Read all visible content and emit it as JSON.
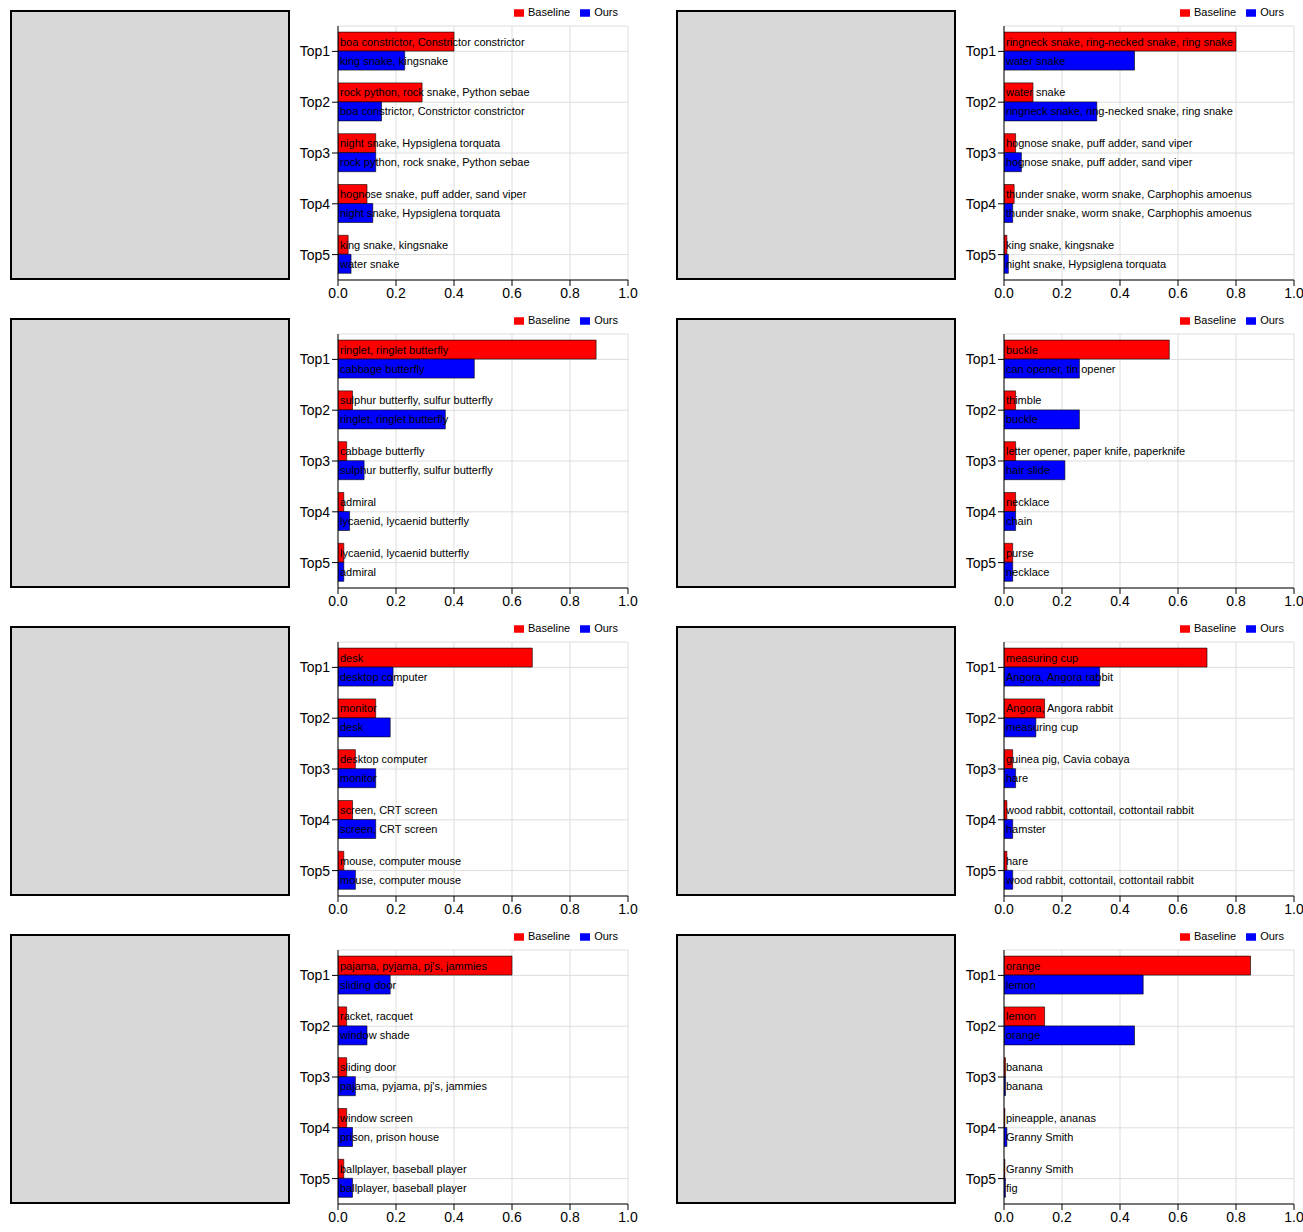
{
  "chart_data": [
    {
      "type": "bar",
      "orientation": "horizontal",
      "grid": true,
      "legend": "top",
      "categories": [
        "Top1",
        "Top2",
        "Top3",
        "Top4",
        "Top5"
      ],
      "xlim": [
        0,
        1
      ],
      "xticks": [
        {
          "value": 0,
          "label": "0.0"
        },
        0.2,
        0.4,
        0.6,
        0.8,
        {
          "value": 1,
          "label": "1.0"
        }
      ],
      "series": [
        {
          "name": "Baseline",
          "color": "#ff0000",
          "values": [
            0.4,
            0.29,
            0.13,
            0.1,
            0.035
          ],
          "labels": [
            "boa constrictor, Constrictor constrictor",
            "rock python, rock snake, Python sebae",
            "night snake, Hypsiglena torquata",
            "hognose snake, puff adder, sand viper",
            "king snake, kingsnake"
          ]
        },
        {
          "name": "Ours",
          "color": "#0000ff",
          "values": [
            0.23,
            0.15,
            0.13,
            0.12,
            0.045
          ],
          "labels": [
            "king snake, kingsnake",
            "boa constrictor, Constrictor constrictor",
            "rock python, rock snake, Python sebae",
            "night snake, Hypsiglena torquata",
            "water snake"
          ]
        }
      ]
    },
    {
      "type": "bar",
      "orientation": "horizontal",
      "grid": true,
      "legend": "top",
      "categories": [
        "Top1",
        "Top2",
        "Top3",
        "Top4",
        "Top5"
      ],
      "xlim": [
        0,
        1
      ],
      "xticks": [
        {
          "value": 0,
          "label": "0.0"
        },
        0.2,
        0.4,
        0.6,
        0.8,
        {
          "value": 1,
          "label": "1.0"
        }
      ],
      "series": [
        {
          "name": "Baseline",
          "color": "#ff0000",
          "values": [
            0.8,
            0.1,
            0.04,
            0.035,
            0.01
          ],
          "labels": [
            "ringneck snake, ring-necked snake, ring snake",
            "water snake",
            "hognose snake, puff adder, sand viper",
            "thunder snake, worm snake, Carphophis amoenus",
            "king snake, kingsnake"
          ]
        },
        {
          "name": "Ours",
          "color": "#0000ff",
          "values": [
            0.45,
            0.32,
            0.06,
            0.03,
            0.015
          ],
          "labels": [
            "water snake",
            "ringneck snake, ring-necked snake, ring snake",
            "hognose snake, puff adder, sand viper",
            "thunder snake, worm snake, Carphophis amoenus",
            "night snake, Hypsiglena torquata"
          ]
        }
      ]
    },
    {
      "type": "bar",
      "orientation": "horizontal",
      "grid": true,
      "legend": "top",
      "categories": [
        "Top1",
        "Top2",
        "Top3",
        "Top4",
        "Top5"
      ],
      "xlim": [
        0,
        1
      ],
      "xticks": [
        {
          "value": 0,
          "label": "0.0"
        },
        0.2,
        0.4,
        0.6,
        0.8,
        {
          "value": 1,
          "label": "1.0"
        }
      ],
      "series": [
        {
          "name": "Baseline",
          "color": "#ff0000",
          "values": [
            0.89,
            0.05,
            0.03,
            0.02,
            0.02
          ],
          "labels": [
            "ringlet, ringlet butterfly",
            "sulphur butterfly, sulfur butterfly",
            "cabbage butterfly",
            "admiral",
            "lycaenid, lycaenid butterfly"
          ]
        },
        {
          "name": "Ours",
          "color": "#0000ff",
          "values": [
            0.47,
            0.37,
            0.09,
            0.04,
            0.02
          ],
          "labels": [
            "cabbage butterfly",
            "ringlet, ringlet butterfly",
            "sulphur butterfly, sulfur butterfly",
            "lycaenid, lycaenid butterfly",
            "admiral"
          ]
        }
      ]
    },
    {
      "type": "bar",
      "orientation": "horizontal",
      "grid": true,
      "legend": "top",
      "categories": [
        "Top1",
        "Top2",
        "Top3",
        "Top4",
        "Top5"
      ],
      "xlim": [
        0,
        1
      ],
      "xticks": [
        {
          "value": 0,
          "label": "0.0"
        },
        0.2,
        0.4,
        0.6,
        0.8,
        {
          "value": 1,
          "label": "1.0"
        }
      ],
      "series": [
        {
          "name": "Baseline",
          "color": "#ff0000",
          "values": [
            0.57,
            0.04,
            0.04,
            0.04,
            0.03
          ],
          "labels": [
            "buckle",
            "thimble",
            "letter opener, paper knife, paperknife",
            "necklace",
            "purse"
          ]
        },
        {
          "name": "Ours",
          "color": "#0000ff",
          "values": [
            0.26,
            0.26,
            0.21,
            0.04,
            0.03
          ],
          "labels": [
            "can opener, tin opener",
            "buckle",
            "hair slide",
            "chain",
            "necklace"
          ]
        }
      ]
    },
    {
      "type": "bar",
      "orientation": "horizontal",
      "grid": true,
      "legend": "top",
      "categories": [
        "Top1",
        "Top2",
        "Top3",
        "Top4",
        "Top5"
      ],
      "xlim": [
        0,
        1
      ],
      "xticks": [
        {
          "value": 0,
          "label": "0.0"
        },
        0.2,
        0.4,
        0.6,
        0.8,
        {
          "value": 1,
          "label": "1.0"
        }
      ],
      "series": [
        {
          "name": "Baseline",
          "color": "#ff0000",
          "values": [
            0.67,
            0.13,
            0.06,
            0.05,
            0.02
          ],
          "labels": [
            "desk",
            "monitor",
            "desktop computer",
            "screen, CRT screen",
            "mouse, computer mouse"
          ]
        },
        {
          "name": "Ours",
          "color": "#0000ff",
          "values": [
            0.19,
            0.18,
            0.13,
            0.13,
            0.06
          ],
          "labels": [
            "desktop computer",
            "desk",
            "monitor",
            "screen, CRT screen",
            "mouse, computer mouse"
          ]
        }
      ]
    },
    {
      "type": "bar",
      "orientation": "horizontal",
      "grid": true,
      "legend": "top",
      "categories": [
        "Top1",
        "Top2",
        "Top3",
        "Top4",
        "Top5"
      ],
      "xlim": [
        0,
        1
      ],
      "xticks": [
        {
          "value": 0,
          "label": "0.0"
        },
        0.2,
        0.4,
        0.6,
        0.8,
        {
          "value": 1,
          "label": "1.0"
        }
      ],
      "series": [
        {
          "name": "Baseline",
          "color": "#ff0000",
          "values": [
            0.7,
            0.14,
            0.03,
            0.01,
            0.01
          ],
          "labels": [
            "measuring cup",
            "Angora, Angora rabbit",
            "guinea pig, Cavia cobaya",
            "wood rabbit, cottontail, cottontail rabbit",
            "hare"
          ]
        },
        {
          "name": "Ours",
          "color": "#0000ff",
          "values": [
            0.33,
            0.11,
            0.04,
            0.03,
            0.03
          ],
          "labels": [
            "Angora, Angora rabbit",
            "measuring cup",
            "hare",
            "hamster",
            "wood rabbit, cottontail, cottontail rabbit"
          ]
        }
      ]
    },
    {
      "type": "bar",
      "orientation": "horizontal",
      "grid": true,
      "legend": "top",
      "categories": [
        "Top1",
        "Top2",
        "Top3",
        "Top4",
        "Top5"
      ],
      "xlim": [
        0,
        1
      ],
      "xticks": [
        {
          "value": 0,
          "label": "0.0"
        },
        0.2,
        0.4,
        0.6,
        0.8,
        {
          "value": 1,
          "label": "1.0"
        }
      ],
      "series": [
        {
          "name": "Baseline",
          "color": "#ff0000",
          "values": [
            0.6,
            0.03,
            0.03,
            0.03,
            0.02
          ],
          "labels": [
            "pajama, pyjama, pj's, jammies",
            "racket, racquet",
            "sliding door",
            "window screen",
            "ballplayer, baseball player"
          ]
        },
        {
          "name": "Ours",
          "color": "#0000ff",
          "values": [
            0.18,
            0.1,
            0.06,
            0.05,
            0.05
          ],
          "labels": [
            "sliding door",
            "window shade",
            "pajama, pyjama, pj's, jammies",
            "prison, prison house",
            "ballplayer, baseball player"
          ]
        }
      ]
    },
    {
      "type": "bar",
      "orientation": "horizontal",
      "grid": true,
      "legend": "top",
      "categories": [
        "Top1",
        "Top2",
        "Top3",
        "Top4",
        "Top5"
      ],
      "xlim": [
        0,
        1
      ],
      "xticks": [
        {
          "value": 0,
          "label": "0.0"
        },
        0.2,
        0.4,
        0.6,
        0.8,
        {
          "value": 1,
          "label": "1.0"
        }
      ],
      "series": [
        {
          "name": "Baseline",
          "color": "#ff0000",
          "values": [
            0.85,
            0.14,
            0.005,
            0.003,
            0.003
          ],
          "labels": [
            "orange",
            "lemon",
            "banana",
            "pineapple, ananas",
            "Granny Smith"
          ]
        },
        {
          "name": "Ours",
          "color": "#0000ff",
          "values": [
            0.48,
            0.45,
            0.005,
            0.01,
            0.005
          ],
          "labels": [
            "lemon",
            "orange",
            "banana",
            "Granny Smith",
            "fig"
          ]
        }
      ]
    }
  ]
}
